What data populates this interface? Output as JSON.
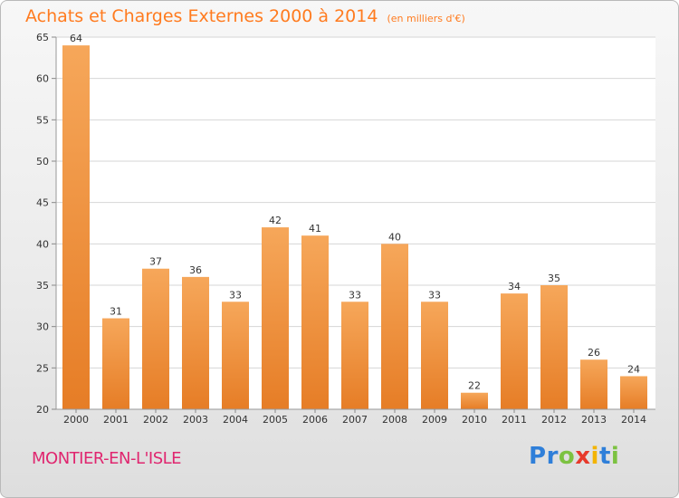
{
  "header": {
    "title": "Achats et Charges Externes 2000 à 2014",
    "unit": "(en milliers d'€)"
  },
  "footer": {
    "commune": "MONTIER-EN-L'ISLE",
    "brand_letters": [
      "P",
      "r",
      "o",
      "x",
      "i",
      "t",
      "i"
    ]
  },
  "colors": {
    "bar_light": "#f6a75a",
    "bar_dark": "#e67d26",
    "title": "#ff7b1f",
    "commune": "#e0266f",
    "brand": [
      "#2f7fd9",
      "#2f7fd9",
      "#7cc241",
      "#e7392b",
      "#f3b400",
      "#2f7fd9",
      "#7cc241"
    ]
  },
  "chart_data": {
    "type": "bar",
    "categories": [
      "2000",
      "2001",
      "2002",
      "2003",
      "2004",
      "2005",
      "2006",
      "2007",
      "2008",
      "2009",
      "2010",
      "2011",
      "2012",
      "2013",
      "2014"
    ],
    "values": [
      64,
      31,
      37,
      36,
      33,
      42,
      41,
      33,
      40,
      33,
      22,
      34,
      35,
      26,
      24
    ],
    "ylim": [
      20,
      65
    ],
    "yticks": [
      20,
      25,
      30,
      35,
      40,
      45,
      50,
      55,
      60,
      65
    ],
    "grid": true
  }
}
